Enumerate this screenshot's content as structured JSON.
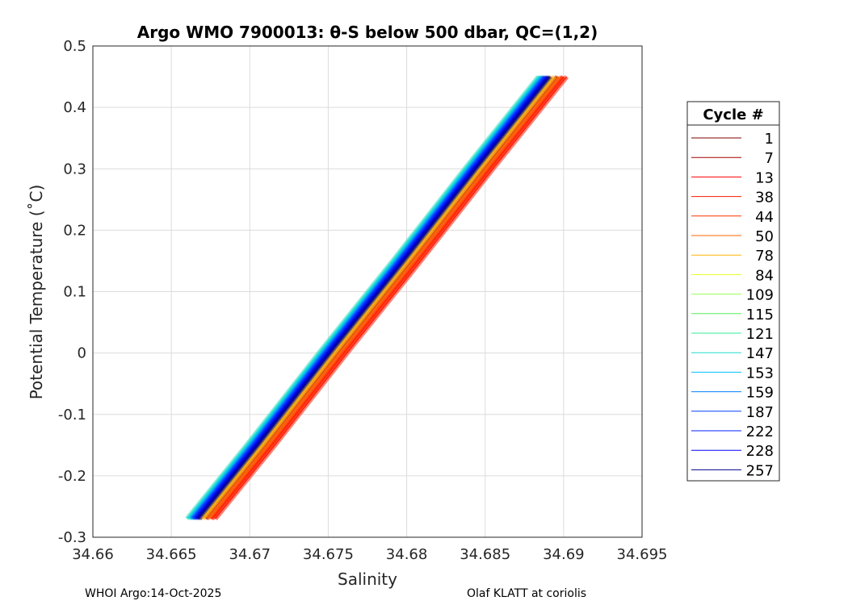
{
  "chart_data": {
    "type": "line",
    "title": "Argo WMO 7900013: θ-S below 500 dbar,  QC=(1,2)",
    "xlabel": "Salinity",
    "ylabel": "Potential Temperature (˚C)",
    "xlim": [
      34.66,
      34.695
    ],
    "ylim": [
      -0.3,
      0.5
    ],
    "xticks": [
      "34.66",
      "34.665",
      "34.67",
      "34.675",
      "34.68",
      "34.685",
      "34.69",
      "34.695"
    ],
    "yticks": [
      "-0.3",
      "-0.2",
      "-0.1",
      "0",
      "0.1",
      "0.2",
      "0.3",
      "0.4",
      "0.5"
    ],
    "grid": true,
    "legend_title": "Cycle #",
    "legend_placement": "right",
    "t": [
      -0.27,
      -0.15,
      0,
      0.15,
      0.3,
      0.45
    ],
    "series": [
      {
        "name": "1",
        "color": "#7f0000",
        "s": [
          34.6668,
          34.6706,
          34.6752,
          34.6799,
          34.6845,
          34.6892
        ]
      },
      {
        "name": "7",
        "color": "#a00000",
        "s": [
          34.6672,
          34.671,
          34.6756,
          34.6803,
          34.6849,
          34.6896
        ]
      },
      {
        "name": "13",
        "color": "#ff0000",
        "s": [
          34.6676,
          34.6714,
          34.676,
          34.6807,
          34.6853,
          34.69
        ]
      },
      {
        "name": "38",
        "color": "#ff1a00",
        "s": [
          34.6678,
          34.6716,
          34.6762,
          34.6809,
          34.6855,
          34.6902
        ]
      },
      {
        "name": "44",
        "color": "#ff3300",
        "s": [
          34.6675,
          34.6713,
          34.6759,
          34.6806,
          34.6852,
          34.6899
        ]
      },
      {
        "name": "50",
        "color": "#ff6600",
        "s": [
          34.6673,
          34.6711,
          34.6757,
          34.6804,
          34.685,
          34.6897
        ]
      },
      {
        "name": "78",
        "color": "#ffb300",
        "s": [
          34.667,
          34.6708,
          34.6754,
          34.6801,
          34.6847,
          34.6894
        ]
      },
      {
        "name": "84",
        "color": "#e6ff1a",
        "s": [
          34.6667,
          34.6705,
          34.6751,
          34.6798,
          34.6844,
          34.6891
        ]
      },
      {
        "name": "109",
        "color": "#99ff55",
        "s": [
          34.6664,
          34.6702,
          34.6748,
          34.6795,
          34.6841,
          34.6888
        ]
      },
      {
        "name": "115",
        "color": "#55ee55",
        "s": [
          34.6662,
          34.67,
          34.6746,
          34.6793,
          34.6839,
          34.6886
        ]
      },
      {
        "name": "121",
        "color": "#33ee99",
        "s": [
          34.6661,
          34.6699,
          34.6745,
          34.6792,
          34.6838,
          34.6885
        ]
      },
      {
        "name": "147",
        "color": "#22ddcc",
        "s": [
          34.666,
          34.6698,
          34.6744,
          34.6791,
          34.6837,
          34.6884
        ]
      },
      {
        "name": "153",
        "color": "#00c0ff",
        "s": [
          34.6662,
          34.67,
          34.6746,
          34.6793,
          34.6839,
          34.6886
        ]
      },
      {
        "name": "159",
        "color": "#0080ff",
        "s": [
          34.6663,
          34.6701,
          34.6747,
          34.6794,
          34.684,
          34.6887
        ]
      },
      {
        "name": "187",
        "color": "#0040ff",
        "s": [
          34.6664,
          34.6702,
          34.6748,
          34.6795,
          34.6841,
          34.6888
        ]
      },
      {
        "name": "222",
        "color": "#0020ff",
        "s": [
          34.6665,
          34.6703,
          34.6749,
          34.6796,
          34.6842,
          34.6889
        ]
      },
      {
        "name": "228",
        "color": "#0000ff",
        "s": [
          34.6666,
          34.6704,
          34.675,
          34.6797,
          34.6843,
          34.689
        ]
      },
      {
        "name": "257",
        "color": "#000090",
        "s": [
          34.6667,
          34.6705,
          34.6751,
          34.6798,
          34.6844,
          34.6891
        ]
      }
    ]
  },
  "footer": {
    "left": "WHOI Argo:14-Oct-2025",
    "right": "Olaf KLATT at coriolis"
  }
}
